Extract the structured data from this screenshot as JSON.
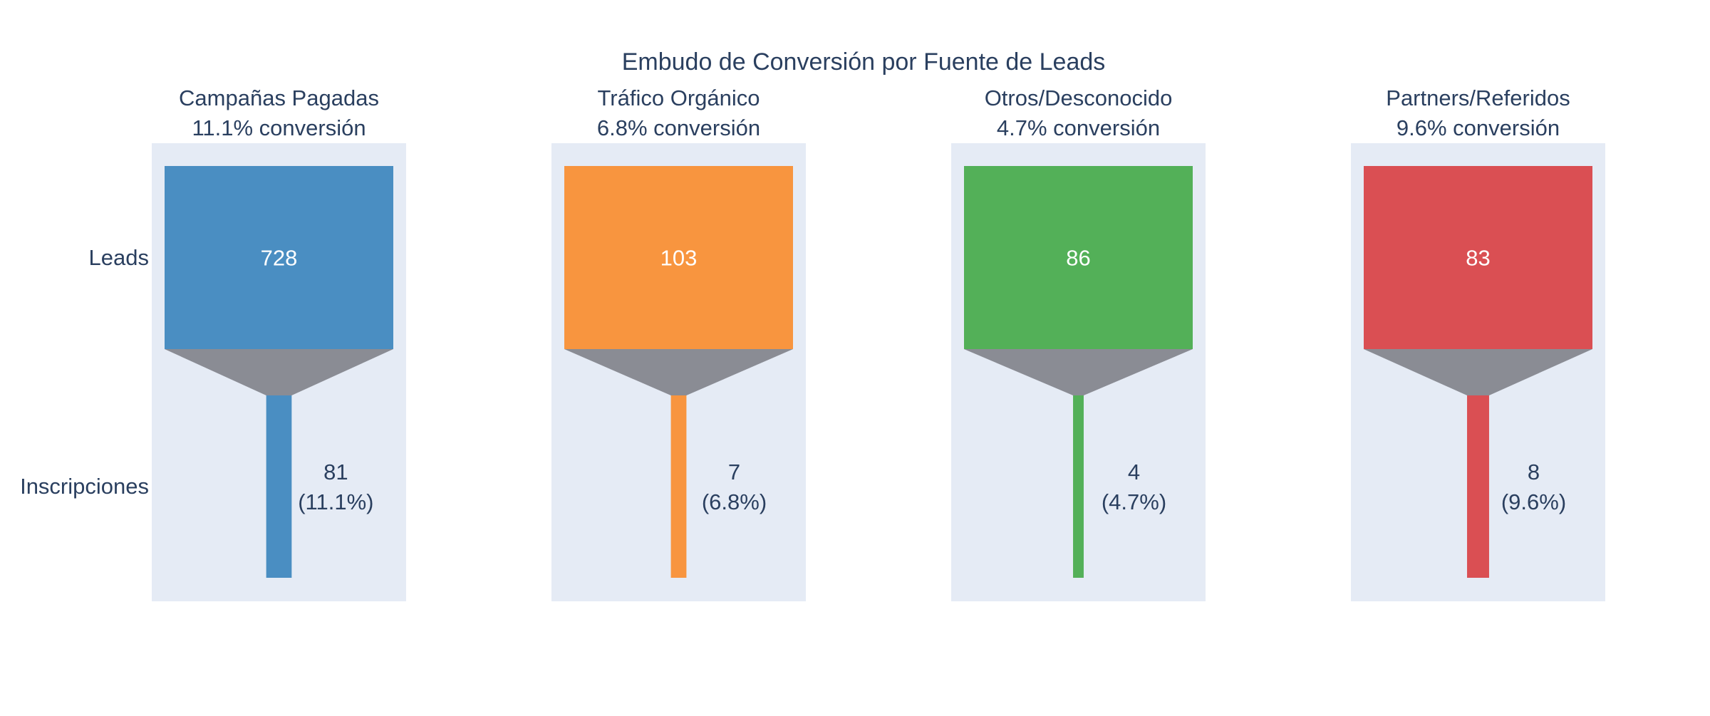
{
  "chart_data": {
    "type": "funnel",
    "title": "Embudo de Conversión por Fuente de Leads",
    "stages": [
      "Leads",
      "Inscripciones"
    ],
    "connector_color": "#8a8c94",
    "plot_background": "#e5ebf5",
    "panels": [
      {
        "name": "Campañas Pagadas",
        "subtitle": "11.1% conversión",
        "color": "#4a8ec2",
        "values": [
          728,
          81
        ],
        "labels": [
          "728",
          "81"
        ],
        "percent_labels": [
          "",
          "(11.1%)"
        ]
      },
      {
        "name": "Tráfico Orgánico",
        "subtitle": "6.8% conversión",
        "color": "#f8953f",
        "values": [
          103,
          7
        ],
        "labels": [
          "103",
          "7"
        ],
        "percent_labels": [
          "",
          "(6.8%)"
        ]
      },
      {
        "name": "Otros/Desconocido",
        "subtitle": "4.7% conversión",
        "color": "#53b058",
        "values": [
          86,
          4
        ],
        "labels": [
          "86",
          "4"
        ],
        "percent_labels": [
          "",
          "(4.7%)"
        ]
      },
      {
        "name": "Partners/Referidos",
        "subtitle": "9.6% conversión",
        "color": "#da4f53",
        "values": [
          83,
          8
        ],
        "labels": [
          "83",
          "8"
        ],
        "percent_labels": [
          "",
          "(9.6%)"
        ]
      }
    ]
  }
}
